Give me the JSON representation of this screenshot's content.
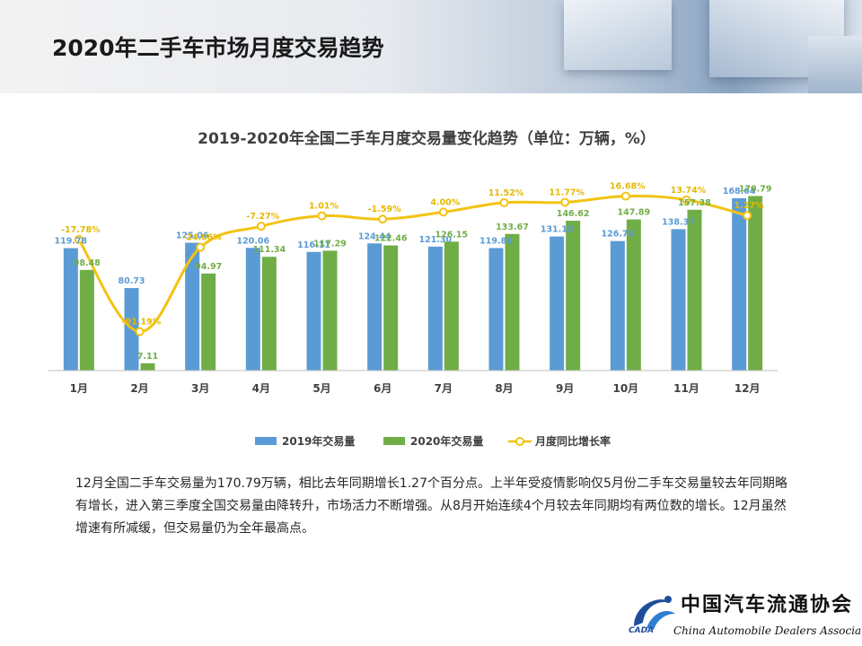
{
  "header": {
    "title": "2020年二手车市场月度交易趋势"
  },
  "chart_data": {
    "type": "bar",
    "title": "2019-2020年全国二手车月度交易量变化趋势（单位：万辆，%）",
    "categories": [
      "1月",
      "2月",
      "3月",
      "4月",
      "5月",
      "6月",
      "7月",
      "8月",
      "9月",
      "10月",
      "11月",
      "12月"
    ],
    "series": [
      {
        "name": "2019年交易量",
        "type": "bar",
        "color": "#5b9bd5",
        "values": [
          119.78,
          80.73,
          125.06,
          120.06,
          116.11,
          124.44,
          121.3,
          119.86,
          131.18,
          126.74,
          138.37,
          168.64
        ],
        "labels": [
          "119.78",
          "80.73",
          "125.06",
          "120.06",
          "116.11",
          "124.44",
          "121.30",
          "119.86",
          "131.18",
          "126.74",
          "138.37",
          "168.64"
        ]
      },
      {
        "name": "2020年交易量",
        "type": "bar",
        "color": "#70ad47",
        "values": [
          98.48,
          7.11,
          94.97,
          111.34,
          117.29,
          122.46,
          126.15,
          133.67,
          146.62,
          147.89,
          157.38,
          170.79
        ],
        "labels": [
          "98.48",
          "7.11",
          "94.97",
          "111.34",
          "117.29",
          "122.46",
          "126.15",
          "133.67",
          "146.62",
          "147.89",
          "157.38",
          "170.79"
        ]
      },
      {
        "name": "月度同比增长率",
        "type": "line",
        "color": "#f2c313",
        "values": [
          -17.78,
          -91.19,
          -24.06,
          -7.27,
          1.01,
          -1.59,
          4.0,
          11.52,
          11.77,
          16.68,
          13.74,
          1.27
        ],
        "labels": [
          "-17.78%",
          "-91.19%",
          "-24.06%",
          "-7.27%",
          "1.01%",
          "-1.59%",
          "4.00%",
          "11.52%",
          "11.77%",
          "16.68%",
          "13.74%",
          "1.27%"
        ]
      }
    ],
    "ylim": [
      0,
      180
    ],
    "y2lim": [
      -100,
      30
    ],
    "grid": false,
    "legend": "bottom"
  },
  "description": "12月全国二手车交易量为170.79万辆，相比去年同期增长1.27个百分点。上半年受疫情影响仅5月份二手车交易量较去年同期略有增长，进入第三季度全国交易量由降转升，市场活力不断增强。从8月开始连续4个月较去年同期均有两位数的增长。12月虽然增速有所减缓，但交易量仍为全年最高点。",
  "logo": {
    "name_cn": "中国汽车流通协会",
    "name_en": "China Automobile Dealers Association",
    "abbr": "CADA"
  }
}
